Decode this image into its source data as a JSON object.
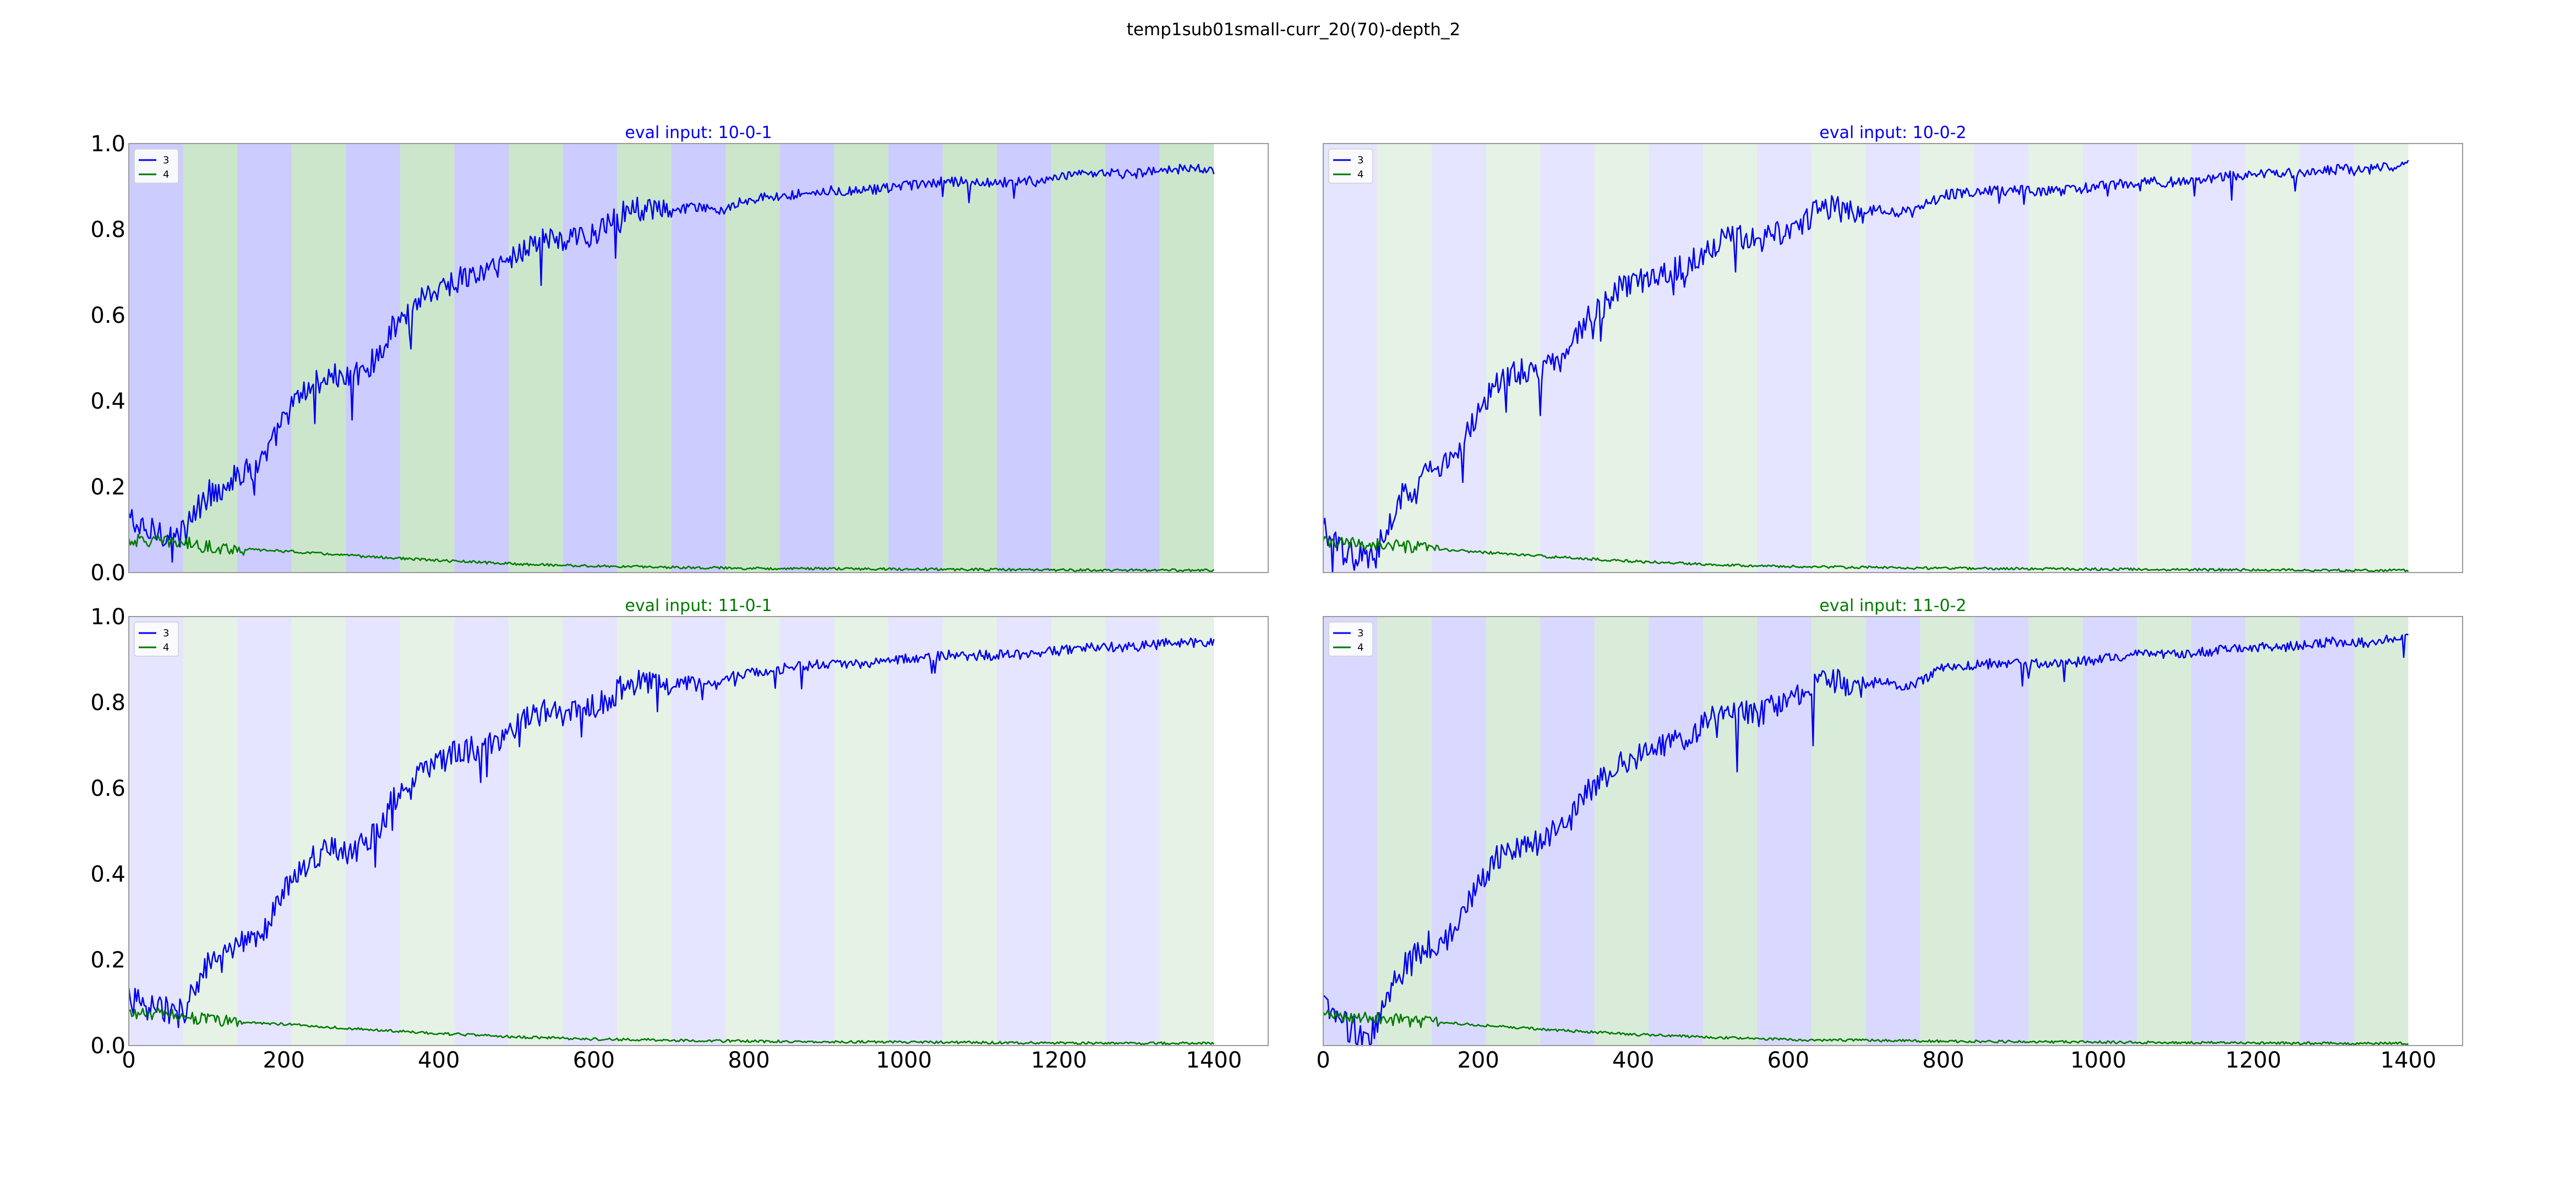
{
  "title": "temp1sub01small-curr_20(70)-depth_2",
  "colors": {
    "series_3": "#0000ee",
    "series_4": "#007a00",
    "band_blue": "#0000ff",
    "band_green": "#008000",
    "axes": "#000000"
  },
  "chart_data": [
    {
      "type": "line",
      "title": "eval input: 10-0-1",
      "title_color": "#0000ee",
      "band_opacity": 0.2,
      "xlim": [
        0,
        1470
      ],
      "ylim": [
        0,
        1.0
      ],
      "xticks": [
        0,
        200,
        400,
        600,
        800,
        1000,
        1200,
        1400
      ],
      "yticks": [
        0.0,
        0.2,
        0.4,
        0.6,
        0.8,
        1.0
      ],
      "show_xticks": false,
      "show_yticks": true,
      "legend": "top-left",
      "grid": false,
      "bands": {
        "width": 70,
        "start": 0,
        "end": 1400,
        "colors": [
          "blue",
          "green"
        ]
      },
      "series": [
        {
          "name": "3",
          "color": "#0000ee",
          "x": [
            0,
            20,
            40,
            60,
            70,
            80,
            100,
            120,
            140,
            160,
            180,
            200,
            220,
            240,
            260,
            280,
            300,
            320,
            340,
            360,
            380,
            400,
            420,
            440,
            460,
            480,
            500,
            520,
            540,
            560,
            580,
            600,
            620,
            640,
            660,
            680,
            700,
            720,
            740,
            760,
            780,
            800,
            850,
            900,
            950,
            1000,
            1050,
            1100,
            1150,
            1200,
            1250,
            1300,
            1350,
            1400
          ],
          "y": [
            0.13,
            0.09,
            0.1,
            0.08,
            0.09,
            0.12,
            0.18,
            0.2,
            0.23,
            0.24,
            0.28,
            0.36,
            0.41,
            0.44,
            0.46,
            0.45,
            0.47,
            0.5,
            0.57,
            0.6,
            0.65,
            0.66,
            0.68,
            0.69,
            0.7,
            0.72,
            0.74,
            0.77,
            0.78,
            0.77,
            0.78,
            0.79,
            0.81,
            0.84,
            0.85,
            0.84,
            0.84,
            0.85,
            0.85,
            0.84,
            0.86,
            0.87,
            0.88,
            0.89,
            0.89,
            0.9,
            0.91,
            0.91,
            0.91,
            0.92,
            0.93,
            0.93,
            0.94,
            0.94
          ]
        },
        {
          "name": "4",
          "color": "#007a00",
          "x": [
            0,
            70,
            100,
            140,
            200,
            300,
            400,
            500,
            600,
            800,
            1000,
            1200,
            1400
          ],
          "y": [
            0.075,
            0.07,
            0.06,
            0.055,
            0.05,
            0.038,
            0.028,
            0.02,
            0.015,
            0.01,
            0.008,
            0.006,
            0.005
          ]
        }
      ]
    },
    {
      "type": "line",
      "title": "eval input: 10-0-2",
      "title_color": "#0000ee",
      "band_opacity": 0.1,
      "xlim": [
        0,
        1470
      ],
      "ylim": [
        0,
        1.0
      ],
      "xticks": [
        0,
        200,
        400,
        600,
        800,
        1000,
        1200,
        1400
      ],
      "yticks": [
        0.0,
        0.2,
        0.4,
        0.6,
        0.8,
        1.0
      ],
      "show_xticks": false,
      "show_yticks": false,
      "legend": "top-left",
      "grid": false,
      "bands": {
        "width": 70,
        "start": 0,
        "end": 1400,
        "colors": [
          "blue",
          "green"
        ]
      },
      "series": [
        {
          "name": "3",
          "color": "#0000ee",
          "x": [
            0,
            20,
            40,
            60,
            70,
            80,
            100,
            120,
            140,
            160,
            180,
            200,
            220,
            240,
            260,
            280,
            300,
            320,
            340,
            360,
            380,
            400,
            420,
            440,
            460,
            480,
            500,
            520,
            540,
            560,
            580,
            600,
            620,
            640,
            660,
            680,
            700,
            720,
            740,
            760,
            780,
            800,
            850,
            900,
            950,
            1000,
            1050,
            1100,
            1150,
            1200,
            1250,
            1300,
            1350,
            1400
          ],
          "y": [
            0.1,
            0.05,
            0.04,
            0.03,
            0.05,
            0.1,
            0.17,
            0.21,
            0.24,
            0.25,
            0.3,
            0.38,
            0.43,
            0.46,
            0.47,
            0.47,
            0.5,
            0.53,
            0.59,
            0.62,
            0.66,
            0.67,
            0.69,
            0.7,
            0.71,
            0.73,
            0.76,
            0.78,
            0.78,
            0.77,
            0.79,
            0.8,
            0.82,
            0.85,
            0.85,
            0.84,
            0.84,
            0.85,
            0.84,
            0.84,
            0.86,
            0.88,
            0.89,
            0.89,
            0.89,
            0.9,
            0.91,
            0.91,
            0.92,
            0.93,
            0.93,
            0.94,
            0.94,
            0.95
          ]
        },
        {
          "name": "4",
          "color": "#007a00",
          "x": [
            0,
            70,
            100,
            140,
            200,
            300,
            400,
            500,
            600,
            800,
            1000,
            1200,
            1400
          ],
          "y": [
            0.07,
            0.065,
            0.06,
            0.055,
            0.048,
            0.036,
            0.026,
            0.019,
            0.014,
            0.01,
            0.008,
            0.006,
            0.005
          ]
        }
      ]
    },
    {
      "type": "line",
      "title": "eval input: 11-0-1",
      "title_color": "#007a00",
      "band_opacity": 0.1,
      "xlim": [
        0,
        1470
      ],
      "ylim": [
        0,
        1.0
      ],
      "xticks": [
        0,
        200,
        400,
        600,
        800,
        1000,
        1200,
        1400
      ],
      "yticks": [
        0.0,
        0.2,
        0.4,
        0.6,
        0.8,
        1.0
      ],
      "show_xticks": true,
      "show_yticks": true,
      "legend": "top-left",
      "grid": false,
      "bands": {
        "width": 70,
        "start": 0,
        "end": 1400,
        "colors": [
          "blue",
          "green"
        ]
      },
      "series": [
        {
          "name": "3",
          "color": "#0000ee",
          "x": [
            0,
            20,
            40,
            60,
            70,
            80,
            100,
            120,
            140,
            160,
            180,
            200,
            220,
            240,
            260,
            280,
            300,
            320,
            340,
            360,
            380,
            400,
            420,
            440,
            460,
            480,
            500,
            520,
            540,
            560,
            580,
            600,
            620,
            640,
            660,
            680,
            700,
            720,
            740,
            760,
            780,
            800,
            850,
            900,
            950,
            1000,
            1050,
            1100,
            1150,
            1200,
            1250,
            1300,
            1350,
            1400
          ],
          "y": [
            0.12,
            0.08,
            0.09,
            0.07,
            0.08,
            0.12,
            0.18,
            0.2,
            0.23,
            0.24,
            0.28,
            0.36,
            0.41,
            0.44,
            0.46,
            0.45,
            0.47,
            0.5,
            0.57,
            0.6,
            0.65,
            0.66,
            0.68,
            0.69,
            0.7,
            0.72,
            0.74,
            0.77,
            0.78,
            0.77,
            0.78,
            0.79,
            0.81,
            0.84,
            0.85,
            0.84,
            0.84,
            0.85,
            0.85,
            0.84,
            0.86,
            0.87,
            0.88,
            0.89,
            0.89,
            0.9,
            0.91,
            0.91,
            0.91,
            0.92,
            0.93,
            0.93,
            0.94,
            0.94
          ]
        },
        {
          "name": "4",
          "color": "#007a00",
          "x": [
            0,
            70,
            100,
            140,
            200,
            300,
            400,
            500,
            600,
            800,
            1000,
            1200,
            1400
          ],
          "y": [
            0.075,
            0.07,
            0.06,
            0.055,
            0.05,
            0.038,
            0.028,
            0.02,
            0.015,
            0.01,
            0.008,
            0.006,
            0.005
          ]
        }
      ]
    },
    {
      "type": "line",
      "title": "eval input: 11-0-2",
      "title_color": "#007a00",
      "band_opacity": 0.15,
      "xlim": [
        0,
        1470
      ],
      "ylim": [
        0,
        1.0
      ],
      "xticks": [
        0,
        200,
        400,
        600,
        800,
        1000,
        1200,
        1400
      ],
      "yticks": [
        0.0,
        0.2,
        0.4,
        0.6,
        0.8,
        1.0
      ],
      "show_xticks": true,
      "show_yticks": false,
      "legend": "top-left",
      "grid": false,
      "bands": {
        "width": 70,
        "start": 0,
        "end": 1400,
        "colors": [
          "blue",
          "green"
        ]
      },
      "series": [
        {
          "name": "3",
          "color": "#0000ee",
          "x": [
            0,
            20,
            40,
            60,
            70,
            80,
            100,
            120,
            140,
            160,
            180,
            200,
            220,
            240,
            260,
            280,
            300,
            320,
            340,
            360,
            380,
            400,
            420,
            440,
            460,
            480,
            500,
            520,
            540,
            560,
            580,
            600,
            620,
            640,
            660,
            680,
            700,
            720,
            740,
            760,
            780,
            800,
            850,
            900,
            950,
            1000,
            1050,
            1100,
            1150,
            1200,
            1250,
            1300,
            1350,
            1400
          ],
          "y": [
            0.1,
            0.05,
            0.04,
            0.03,
            0.05,
            0.1,
            0.17,
            0.21,
            0.24,
            0.25,
            0.3,
            0.38,
            0.43,
            0.46,
            0.47,
            0.47,
            0.5,
            0.53,
            0.59,
            0.62,
            0.66,
            0.67,
            0.69,
            0.7,
            0.71,
            0.73,
            0.76,
            0.78,
            0.78,
            0.77,
            0.79,
            0.8,
            0.82,
            0.85,
            0.85,
            0.84,
            0.84,
            0.85,
            0.84,
            0.84,
            0.86,
            0.88,
            0.89,
            0.89,
            0.89,
            0.9,
            0.91,
            0.91,
            0.92,
            0.93,
            0.93,
            0.94,
            0.94,
            0.95
          ]
        },
        {
          "name": "4",
          "color": "#007a00",
          "x": [
            0,
            70,
            100,
            140,
            200,
            300,
            400,
            500,
            600,
            800,
            1000,
            1200,
            1400
          ],
          "y": [
            0.07,
            0.065,
            0.06,
            0.055,
            0.048,
            0.036,
            0.026,
            0.019,
            0.014,
            0.01,
            0.008,
            0.006,
            0.005
          ]
        }
      ]
    }
  ]
}
